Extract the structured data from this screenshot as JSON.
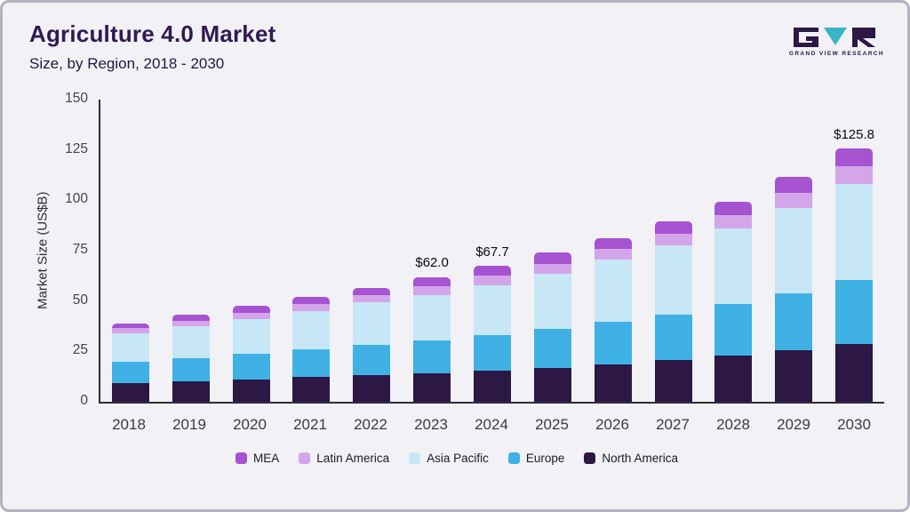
{
  "header": {
    "title": "Agriculture 4.0 Market",
    "subtitle": "Size, by Region, 2018 - 2030",
    "logo_text": "GRAND VIEW RESEARCH"
  },
  "colors": {
    "mea": "#a653d2",
    "latin_america": "#d4a5e9",
    "asia_pacific": "#c7e7f7",
    "europe": "#3fb1e5",
    "north_america": "#2c1745",
    "logo_dark": "#2c1745",
    "logo_teal": "#38b6c5"
  },
  "chart_data": {
    "type": "bar",
    "stacked": true,
    "title": "Agriculture 4.0 Market",
    "subtitle": "Size, by Region, 2018 - 2030",
    "xlabel": "",
    "ylabel": "Market Size (US$B)",
    "ylim": [
      0,
      150
    ],
    "yticks": [
      0,
      25,
      50,
      75,
      100,
      125,
      150
    ],
    "grid": false,
    "legend_position": "bottom",
    "categories": [
      "2018",
      "2019",
      "2020",
      "2021",
      "2022",
      "2023",
      "2024",
      "2025",
      "2026",
      "2027",
      "2028",
      "2029",
      "2030"
    ],
    "series": [
      {
        "name": "North America",
        "color": "#2c1745",
        "values": [
          9.2,
          10.2,
          11.2,
          12.2,
          13.3,
          14.3,
          15.6,
          17.0,
          18.6,
          20.6,
          23.0,
          25.6,
          28.6
        ]
      },
      {
        "name": "Europe",
        "color": "#3fb1e5",
        "values": [
          10.8,
          11.4,
          12.6,
          13.8,
          15.0,
          16.2,
          17.6,
          19.3,
          21.0,
          22.8,
          25.4,
          28.2,
          31.8
        ]
      },
      {
        "name": "Asia Pacific",
        "color": "#c7e7f7",
        "values": [
          14.0,
          16.0,
          17.2,
          19.0,
          21.0,
          22.6,
          24.8,
          27.2,
          30.9,
          34.3,
          37.6,
          42.3,
          47.8
        ]
      },
      {
        "name": "Latin America",
        "color": "#d4a5e9",
        "values": [
          2.5,
          2.8,
          3.3,
          3.5,
          3.6,
          4.1,
          4.6,
          5.0,
          5.2,
          5.8,
          6.5,
          7.4,
          8.6
        ]
      },
      {
        "name": "MEA",
        "color": "#a653d2",
        "values": [
          2.5,
          2.8,
          3.5,
          3.6,
          3.8,
          4.8,
          5.1,
          5.5,
          5.6,
          6.0,
          7.0,
          8.0,
          9.0
        ]
      }
    ],
    "annotations": {
      "2023": "$62.0",
      "2024": "$67.7",
      "2030": "$125.8"
    },
    "legend": [
      {
        "label": "MEA",
        "color": "#a653d2"
      },
      {
        "label": "Latin America",
        "color": "#d4a5e9"
      },
      {
        "label": "Asia Pacific",
        "color": "#c7e7f7"
      },
      {
        "label": "Europe",
        "color": "#3fb1e5"
      },
      {
        "label": "North America",
        "color": "#2c1745"
      }
    ]
  }
}
